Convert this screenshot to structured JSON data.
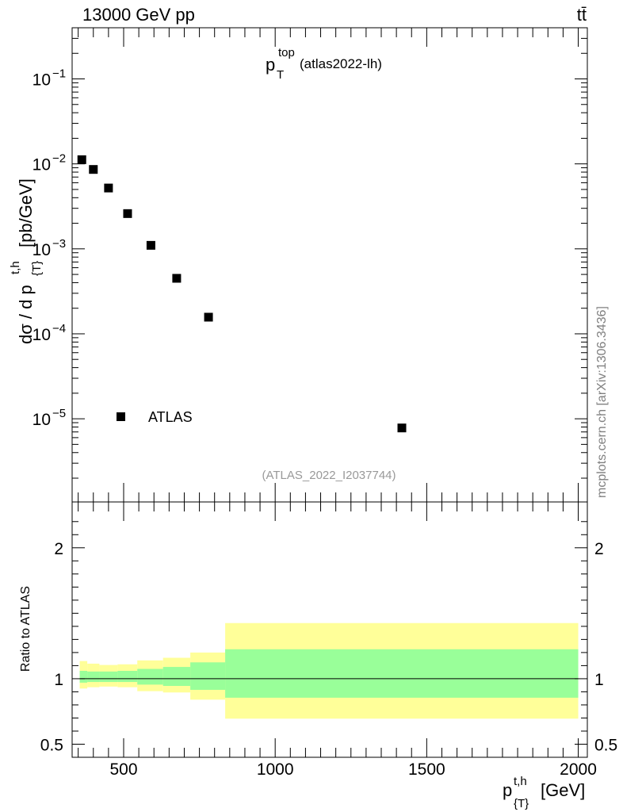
{
  "header": {
    "energy_label": "13000 GeV pp",
    "process_label": "tt̄",
    "side_label": "mcplots.cern.ch [arXiv:1306.3436]",
    "analysis_label": "(ATLAS_2022_I2037744)"
  },
  "chart_data": [
    {
      "type": "scatter",
      "title": "p",
      "title_sup": "top",
      "title_sub": "T",
      "title_note": "(atlas2022-lh)",
      "ylabel": "dσ / d p",
      "ylabel_sup": "t,h",
      "ylabel_sub": "{T}",
      "ylabel_unit": "[pb/GeV]",
      "yscale": "log",
      "xlim": [
        330,
        2030
      ],
      "ylim": [
        1.05e-06,
        0.4
      ],
      "y_ticks": [
        {
          "value": 0.1,
          "base": "10",
          "exp": "−1"
        },
        {
          "value": 0.01,
          "base": "10",
          "exp": "−2"
        },
        {
          "value": 0.001,
          "base": "10",
          "exp": "−3"
        },
        {
          "value": 0.0001,
          "base": "10",
          "exp": "−4"
        },
        {
          "value": 1e-05,
          "base": "10",
          "exp": "−5"
        }
      ],
      "legend": {
        "placement": "bottom-left",
        "entries": [
          "ATLAS"
        ]
      },
      "series": [
        {
          "name": "ATLAS",
          "x": [
            362,
            400,
            450,
            513,
            590,
            675,
            780,
            1418
          ],
          "y": [
            0.0112,
            0.0086,
            0.0052,
            0.0026,
            0.0011,
            0.00045,
            0.000157,
            7.8e-06
          ]
        }
      ]
    },
    {
      "type": "area",
      "ylabel": "Ratio to ATLAS",
      "xlabel": "p",
      "xlabel_sup": "t,h",
      "xlabel_sub": "{T}",
      "xlabel_unit": "[GeV]",
      "xlim": [
        330,
        2030
      ],
      "ylim": [
        0.4,
        2.35
      ],
      "x_ticks": [
        "500",
        "1000",
        "1500",
        "2000"
      ],
      "y_ticks": [
        "0.5",
        "1",
        "2"
      ],
      "reference_line": 1,
      "bands": {
        "edges": [
          355,
          380,
          420,
          480,
          545,
          630,
          720,
          835,
          2000
        ],
        "yellow_lo": [
          0.925,
          0.935,
          0.94,
          0.935,
          0.905,
          0.895,
          0.84,
          0.695
        ],
        "yellow_hi": [
          1.135,
          1.115,
          1.105,
          1.11,
          1.14,
          1.16,
          1.2,
          1.425
        ],
        "green_lo": [
          0.97,
          0.975,
          0.975,
          0.975,
          0.955,
          0.945,
          0.915,
          0.855
        ],
        "green_hi": [
          1.06,
          1.055,
          1.055,
          1.06,
          1.075,
          1.09,
          1.125,
          1.225
        ]
      }
    }
  ]
}
